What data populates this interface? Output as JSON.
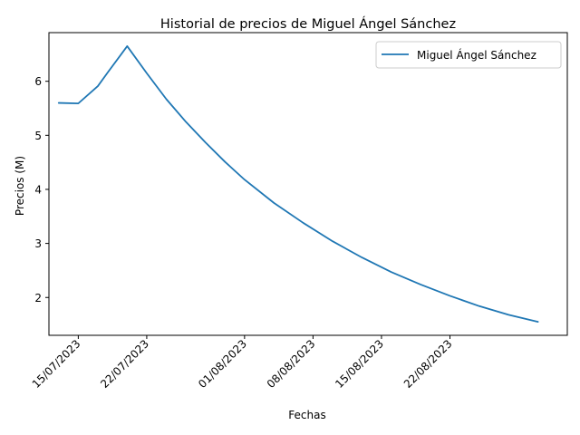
{
  "chart_data": {
    "type": "line",
    "title": "Historial de precios de Miguel Ángel Sánchez",
    "xlabel": "Fechas",
    "ylabel": "Precios (M)",
    "x_ticks": [
      "15/07/2023",
      "22/07/2023",
      "01/08/2023",
      "08/08/2023",
      "15/08/2023",
      "22/08/2023"
    ],
    "y_ticks": [
      "2",
      "3",
      "4",
      "5",
      "6"
    ],
    "ylim": [
      1.3,
      6.9
    ],
    "xlim": [
      "2023-07-12",
      "2023-09-03"
    ],
    "grid": false,
    "legend_position": "top-right",
    "series": [
      {
        "name": "Miguel Ángel Sánchez",
        "color": "#1f77b4",
        "points": [
          {
            "x": "2023-07-13",
            "y": 5.6
          },
          {
            "x": "2023-07-15",
            "y": 5.59
          },
          {
            "x": "2023-07-17",
            "y": 5.91
          },
          {
            "x": "2023-07-18",
            "y": 6.16
          },
          {
            "x": "2023-07-20",
            "y": 6.65
          },
          {
            "x": "2023-07-22",
            "y": 6.15
          },
          {
            "x": "2023-07-24",
            "y": 5.67
          },
          {
            "x": "2023-07-26",
            "y": 5.25
          },
          {
            "x": "2023-07-28",
            "y": 4.87
          },
          {
            "x": "2023-07-30",
            "y": 4.51
          },
          {
            "x": "2023-08-01",
            "y": 4.18
          },
          {
            "x": "2023-08-04",
            "y": 3.75
          },
          {
            "x": "2023-08-07",
            "y": 3.38
          },
          {
            "x": "2023-08-10",
            "y": 3.04
          },
          {
            "x": "2023-08-13",
            "y": 2.74
          },
          {
            "x": "2023-08-16",
            "y": 2.47
          },
          {
            "x": "2023-08-19",
            "y": 2.24
          },
          {
            "x": "2023-08-22",
            "y": 2.03
          },
          {
            "x": "2023-08-25",
            "y": 1.84
          },
          {
            "x": "2023-08-28",
            "y": 1.68
          },
          {
            "x": "2023-08-31",
            "y": 1.55
          }
        ]
      }
    ]
  }
}
